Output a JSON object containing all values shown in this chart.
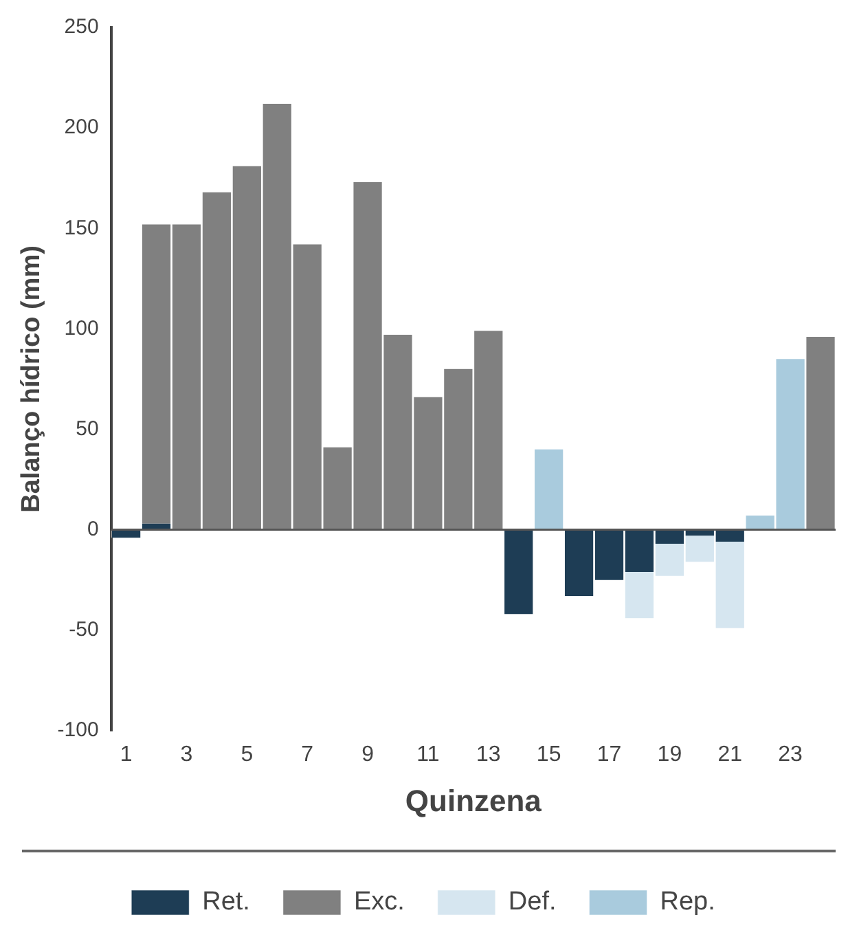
{
  "chart_data": {
    "type": "bar",
    "stacked": true,
    "xlabel": "Quinzena",
    "ylabel": "Balanço hídrico (mm)",
    "x": [
      1,
      2,
      3,
      4,
      5,
      6,
      7,
      8,
      9,
      10,
      11,
      12,
      13,
      14,
      15,
      16,
      17,
      18,
      19,
      20,
      21,
      22,
      23,
      24
    ],
    "xlim": [
      0.5,
      24.5
    ],
    "xticks": [
      1,
      3,
      5,
      7,
      9,
      11,
      13,
      15,
      17,
      19,
      21,
      23
    ],
    "series": [
      {
        "name": "Ret.",
        "color": "#1e3d55",
        "values": [
          -4,
          3,
          null,
          null,
          null,
          null,
          null,
          null,
          null,
          null,
          null,
          null,
          null,
          -42,
          null,
          -33,
          -25,
          -21,
          -7,
          -3,
          -6,
          null,
          null,
          null
        ]
      },
      {
        "name": "Exc.",
        "color": "#808080",
        "values": [
          null,
          149,
          152,
          168,
          181,
          212,
          142,
          41,
          173,
          97,
          66,
          80,
          99,
          null,
          null,
          null,
          null,
          null,
          null,
          null,
          null,
          null,
          null,
          96
        ]
      },
      {
        "name": "Def.",
        "color": "#d6e6f0",
        "values": [
          null,
          null,
          null,
          null,
          null,
          null,
          null,
          null,
          null,
          null,
          null,
          null,
          null,
          null,
          null,
          null,
          null,
          -23,
          -16,
          -13,
          -43,
          null,
          null,
          null
        ]
      },
      {
        "name": "Rep.",
        "color": "#a9cbdd",
        "values": [
          null,
          null,
          null,
          null,
          null,
          null,
          null,
          null,
          null,
          null,
          null,
          null,
          null,
          null,
          40,
          null,
          null,
          null,
          null,
          null,
          null,
          7,
          85,
          null
        ]
      }
    ],
    "ylim": [
      -100,
      250
    ],
    "yticks": [
      -100,
      -50,
      0,
      50,
      100,
      150,
      200,
      250
    ],
    "ref_lines": [
      {
        "axis": "y",
        "value": 0,
        "color": "#555555"
      }
    ],
    "grid": false,
    "legend": "bottom"
  }
}
